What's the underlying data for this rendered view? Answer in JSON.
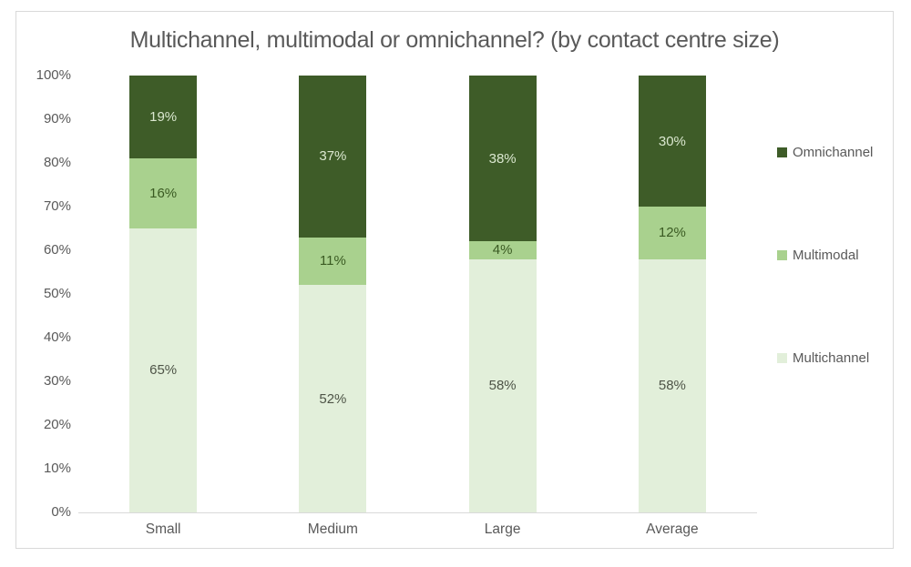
{
  "chart_data": {
    "type": "bar",
    "stacked": true,
    "title": "Multichannel, multimodal or omnichannel? (by contact centre size)",
    "categories": [
      "Small",
      "Medium",
      "Large",
      "Average"
    ],
    "series": [
      {
        "name": "Multichannel",
        "values": [
          65,
          52,
          58,
          58
        ],
        "color": "#e2efda",
        "label_color": "#4e5447"
      },
      {
        "name": "Multimodal",
        "values": [
          16,
          11,
          4,
          12
        ],
        "color": "#a9d18e",
        "label_color": "#3a5a22"
      },
      {
        "name": "Omnichannel",
        "values": [
          19,
          37,
          38,
          30
        ],
        "color": "#3e5c28",
        "label_color": "#dbe8d0"
      }
    ],
    "value_suffix": "%",
    "ylabel": "",
    "xlabel": "",
    "ylim": [
      0,
      100
    ],
    "y_ticks": [
      "100%",
      "90%",
      "80%",
      "70%",
      "60%",
      "50%",
      "40%",
      "30%",
      "20%",
      "10%",
      "0%"
    ],
    "grid": false,
    "legend_position": "right",
    "legend_order_top_to_bottom": [
      "Omnichannel",
      "Multimodal",
      "Multichannel"
    ]
  },
  "colors": {
    "border": "#d9d9d9",
    "axis_line": "#d9d9d9",
    "text": "#595959",
    "background": "#ffffff"
  }
}
